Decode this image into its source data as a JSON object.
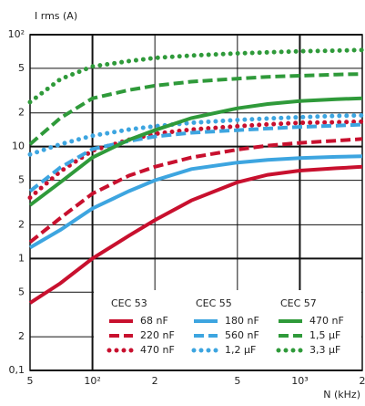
{
  "chart_data": {
    "type": "line",
    "y_label": "I rms (A)",
    "x_label": "N (kHz)",
    "x": [
      50,
      70,
      100,
      150,
      200,
      300,
      500,
      700,
      1000,
      1500,
      2000
    ],
    "xlim": [
      50,
      2000
    ],
    "ylim": [
      0.1,
      100
    ],
    "xscale": "log",
    "yscale": "log",
    "grid": true,
    "xticks": [
      {
        "value": 50,
        "label": "5"
      },
      {
        "value": 100,
        "label": "10²"
      },
      {
        "value": 200,
        "label": "2"
      },
      {
        "value": 500,
        "label": "5"
      },
      {
        "value": 1000,
        "label": "10³"
      },
      {
        "value": 2000,
        "label": "2"
      }
    ],
    "yticks": [
      {
        "value": 0.1,
        "label": "0,1"
      },
      {
        "value": 0.2,
        "label": "2"
      },
      {
        "value": 0.5,
        "label": "5"
      },
      1,
      2,
      5,
      10,
      {
        "value": 20,
        "label": "2"
      },
      {
        "value": 50,
        "label": "5"
      },
      {
        "value": 100,
        "label": "10²"
      }
    ],
    "legend_groups": [
      "CEC 53",
      "CEC 55",
      "CEC 57"
    ],
    "series": [
      {
        "name": "68 nF",
        "color": "#c8102e",
        "line_style": "solid",
        "values": [
          0.4,
          0.6,
          1.0,
          1.6,
          2.2,
          3.3,
          4.8,
          5.6,
          6.1,
          6.4,
          6.6
        ]
      },
      {
        "name": "220 nF",
        "color": "#c8102e",
        "line_style": "dashed",
        "values": [
          1.4,
          2.3,
          3.8,
          5.5,
          6.6,
          8,
          9.4,
          10.2,
          10.8,
          11.3,
          11.7
        ]
      },
      {
        "name": "470 nF",
        "color": "#c8102e",
        "line_style": "dotted",
        "values": [
          3.5,
          6,
          9.2,
          11.5,
          13,
          14.2,
          15.2,
          15.8,
          16.3,
          16.5,
          16.7
        ]
      },
      {
        "name": "180 nF",
        "color": "#3da5e0",
        "line_style": "solid",
        "values": [
          1.25,
          1.8,
          2.8,
          4.0,
          5.0,
          6.3,
          7.2,
          7.6,
          7.9,
          8.1,
          8.2
        ]
      },
      {
        "name": "560 nF",
        "color": "#3da5e0",
        "line_style": "dashed",
        "values": [
          4.0,
          6.5,
          9.5,
          11.2,
          12.3,
          13.3,
          14,
          14.5,
          15,
          15.4,
          15.7
        ]
      },
      {
        "name": "1,2 µF",
        "color": "#3da5e0",
        "line_style": "dotted",
        "values": [
          8.5,
          10.5,
          12.5,
          14.2,
          15.2,
          16.3,
          17.3,
          17.8,
          18.3,
          18.8,
          19
        ]
      },
      {
        "name": "470 nF",
        "color": "#2f9a3a",
        "line_style": "solid",
        "values": [
          3.0,
          4.8,
          8,
          11.5,
          14,
          18,
          22,
          24,
          25.5,
          26.5,
          27
        ]
      },
      {
        "name": "1,5 µF",
        "color": "#2f9a3a",
        "line_style": "dashed",
        "values": [
          10.5,
          18,
          27,
          32,
          35,
          38,
          40.5,
          42,
          43,
          44,
          44.5
        ]
      },
      {
        "name": "3,3 µF",
        "color": "#2f9a3a",
        "line_style": "dotted",
        "values": [
          25,
          40,
          52,
          58,
          62,
          65,
          68,
          69.5,
          71,
          72,
          73
        ]
      }
    ]
  }
}
